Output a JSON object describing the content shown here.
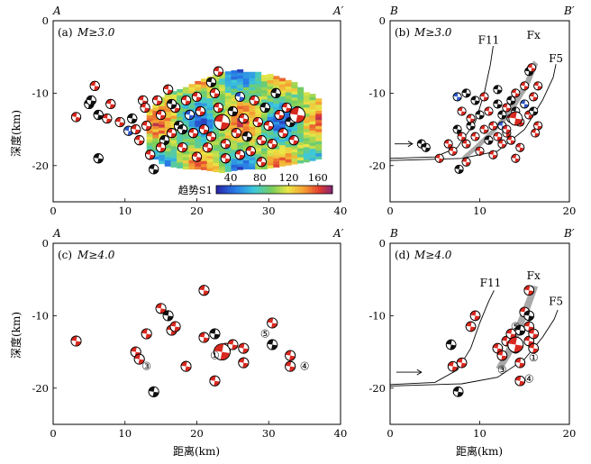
{
  "chart_data": [
    {
      "id": "a",
      "type": "scatter",
      "panel_label": "(a)",
      "magnitude_label": "M≥3.0",
      "corner_left": "A",
      "corner_right": "A′",
      "xlim": [
        0,
        40
      ],
      "ylim": [
        -25,
        0
      ],
      "xticks": [
        0,
        10,
        20,
        30,
        40
      ],
      "yticks": [
        0,
        -10,
        -20
      ],
      "ylabel": "深度(km)",
      "colorbar": {
        "label": "趋势S1",
        "ticks": [
          40,
          80,
          120,
          160
        ],
        "range": [
          20,
          180
        ]
      },
      "heat_region": {
        "x_from": 13,
        "x_to": 37,
        "ranges": [
          [
            13,
            -12.5,
            -18.5
          ],
          [
            15,
            -10.5,
            -20
          ],
          [
            18,
            -9.5,
            -20.5
          ],
          [
            20,
            -8.5,
            -20.5
          ],
          [
            23,
            -7.5,
            -21
          ],
          [
            26,
            -7,
            -20.5
          ],
          [
            29,
            -7.5,
            -20.5
          ],
          [
            32,
            -8,
            -20
          ],
          [
            35,
            -10,
            -19.5
          ],
          [
            37,
            -11,
            -19
          ]
        ]
      },
      "points": [
        [
          3.2,
          -13.3,
          "r"
        ],
        [
          5.0,
          -11.5,
          "b"
        ],
        [
          5.3,
          -11.0,
          "b"
        ],
        [
          5.8,
          -9.0,
          "r"
        ],
        [
          6.3,
          -13.0,
          "b"
        ],
        [
          6.3,
          -19.0,
          "b"
        ],
        [
          7.5,
          -13.5,
          "r"
        ],
        [
          8.0,
          -11.5,
          "r"
        ],
        [
          9.3,
          -14.0,
          "r"
        ],
        [
          10.5,
          -15.2,
          "u"
        ],
        [
          11.0,
          -13.5,
          "b"
        ],
        [
          11.5,
          -15.0,
          "r"
        ],
        [
          12.0,
          -16.5,
          "r"
        ],
        [
          12.5,
          -11.0,
          "r"
        ],
        [
          13.0,
          -14.5,
          "r"
        ],
        [
          13.5,
          -18.5,
          "r"
        ],
        [
          14.0,
          -20.5,
          "b"
        ],
        [
          14.5,
          -11.0,
          "r"
        ],
        [
          15.0,
          -13.0,
          "r"
        ],
        [
          15.5,
          -16.5,
          "b"
        ],
        [
          16.0,
          -9.5,
          "r"
        ],
        [
          16.5,
          -15.5,
          "r"
        ],
        [
          17.0,
          -12.0,
          "r"
        ],
        [
          17.5,
          -14.5,
          "b"
        ],
        [
          18.0,
          -17.5,
          "r"
        ],
        [
          18.5,
          -11.0,
          "r"
        ],
        [
          19.0,
          -13.0,
          "u"
        ],
        [
          19.5,
          -15.5,
          "r"
        ],
        [
          20.0,
          -10.5,
          "r"
        ],
        [
          20.5,
          -12.5,
          "r"
        ],
        [
          21.0,
          -15.0,
          "r"
        ],
        [
          21.5,
          -17.5,
          "r"
        ],
        [
          22.0,
          -8.5,
          "b"
        ],
        [
          22.5,
          -10.0,
          "r"
        ],
        [
          23.0,
          -12.0,
          "r"
        ],
        [
          23.5,
          -14.5,
          "r"
        ],
        [
          24.0,
          -17.0,
          "r"
        ],
        [
          24.0,
          -19.0,
          "r"
        ],
        [
          25.0,
          -12.5,
          "b"
        ],
        [
          25.5,
          -15.5,
          "r"
        ],
        [
          26.0,
          -10.5,
          "u"
        ],
        [
          26.5,
          -13.5,
          "r"
        ],
        [
          27.0,
          -16.0,
          "b"
        ],
        [
          27.5,
          -18.0,
          "r"
        ],
        [
          28.0,
          -11.0,
          "r"
        ],
        [
          28.5,
          -14.0,
          "r"
        ],
        [
          29.0,
          -16.5,
          "r"
        ],
        [
          29.5,
          -12.0,
          "b"
        ],
        [
          30.0,
          -14.5,
          "r"
        ],
        [
          30.5,
          -17.0,
          "r"
        ],
        [
          31.0,
          -10.0,
          "b"
        ],
        [
          31.5,
          -13.0,
          "r"
        ],
        [
          32.0,
          -15.5,
          "r"
        ],
        [
          32.5,
          -12.0,
          "r"
        ],
        [
          33.0,
          -14.0,
          "b"
        ],
        [
          33.5,
          -16.5,
          "r"
        ],
        [
          34.0,
          -12.5,
          "r"
        ],
        [
          22.0,
          -16.0,
          "r"
        ],
        [
          18.0,
          -15.0,
          "b"
        ],
        [
          15.0,
          -17.5,
          "r"
        ],
        [
          12.8,
          -12.0,
          "r"
        ],
        [
          26.0,
          -18.5,
          "r"
        ],
        [
          23.0,
          -7.0,
          "r"
        ],
        [
          16.5,
          -11.5,
          "b"
        ],
        [
          20.0,
          -18.8,
          "r"
        ],
        [
          29.0,
          -19.5,
          "r"
        ]
      ],
      "big_points": [
        [
          23.5,
          -14.0,
          "r"
        ],
        [
          34.0,
          -13.0,
          "r"
        ]
      ]
    },
    {
      "id": "b",
      "type": "scatter",
      "panel_label": "(b)",
      "magnitude_label": "M≥3.0",
      "corner_left": "B",
      "corner_right": "B′",
      "xlim": [
        0,
        20
      ],
      "ylim": [
        -25,
        0
      ],
      "xticks": [
        0,
        10,
        20
      ],
      "yticks": [
        0,
        -10,
        -20
      ],
      "fault_labels": [
        {
          "text": "F11",
          "x": 11.0,
          "y": -3.2
        },
        {
          "text": "Fx",
          "x": 16.0,
          "y": -2.5
        },
        {
          "text": "F5",
          "x": 18.5,
          "y": -5.7
        }
      ],
      "faults": [
        [
          [
            0,
            -19
          ],
          [
            5,
            -18.8
          ],
          [
            7.5,
            -17.5
          ],
          [
            9.5,
            -14
          ],
          [
            10.5,
            -10
          ],
          [
            11.2,
            -6
          ],
          [
            11.5,
            -3.5
          ]
        ],
        [
          [
            0,
            -19.3
          ],
          [
            8,
            -19
          ],
          [
            12,
            -18
          ],
          [
            15,
            -15
          ],
          [
            17,
            -11
          ],
          [
            18.2,
            -7.8
          ],
          [
            18.5,
            -6
          ]
        ]
      ],
      "band": [
        [
          8.5,
          -19
        ],
        [
          10,
          -17.5
        ],
        [
          12,
          -15
        ],
        [
          13.5,
          -13
        ],
        [
          14.5,
          -11
        ],
        [
          15.5,
          -9
        ],
        [
          16.5,
          -6
        ],
        [
          16.0,
          -5.5
        ],
        [
          15.0,
          -8.5
        ],
        [
          14.0,
          -10.5
        ],
        [
          13.0,
          -12.5
        ],
        [
          11.5,
          -14.8
        ],
        [
          9.5,
          -17.2
        ],
        [
          8.0,
          -18.8
        ]
      ],
      "arrow": {
        "from": [
          0.5,
          -17.0
        ],
        "to": [
          2.5,
          -17.0
        ]
      },
      "points": [
        [
          3.5,
          -17.0,
          "b"
        ],
        [
          4.0,
          -17.5,
          "b"
        ],
        [
          5.5,
          -19.0,
          "r"
        ],
        [
          6.5,
          -17.0,
          "r"
        ],
        [
          7.0,
          -18.0,
          "r"
        ],
        [
          7.5,
          -15.0,
          "b"
        ],
        [
          8.0,
          -16.0,
          "r"
        ],
        [
          8.5,
          -19.5,
          "r"
        ],
        [
          7.7,
          -20.5,
          "b"
        ],
        [
          7.5,
          -10.5,
          "u"
        ],
        [
          8.5,
          -10.0,
          "b"
        ],
        [
          8.0,
          -12.5,
          "r"
        ],
        [
          8.5,
          -17.0,
          "r"
        ],
        [
          9.0,
          -14.5,
          "b"
        ],
        [
          9.5,
          -11.0,
          "b"
        ],
        [
          9.5,
          -16.0,
          "r"
        ],
        [
          10.0,
          -13.0,
          "b"
        ],
        [
          10.0,
          -18.0,
          "r"
        ],
        [
          10.5,
          -10.5,
          "r"
        ],
        [
          10.5,
          -15.0,
          "r"
        ],
        [
          11.0,
          -12.5,
          "r"
        ],
        [
          11.0,
          -16.5,
          "b"
        ],
        [
          11.5,
          -14.5,
          "r"
        ],
        [
          12.0,
          -11.5,
          "b"
        ],
        [
          12.0,
          -16.0,
          "r"
        ],
        [
          12.5,
          -13.0,
          "b"
        ],
        [
          12.5,
          -14.5,
          "u"
        ],
        [
          13.0,
          -12.0,
          "r"
        ],
        [
          13.0,
          -15.5,
          "r"
        ],
        [
          13.5,
          -11.0,
          "b"
        ],
        [
          13.5,
          -13.5,
          "r"
        ],
        [
          14.0,
          -12.5,
          "b"
        ],
        [
          14.0,
          -10.0,
          "r"
        ],
        [
          14.5,
          -14.0,
          "r"
        ],
        [
          14.5,
          -17.5,
          "r"
        ],
        [
          15.0,
          -9.0,
          "r"
        ],
        [
          15.0,
          -11.5,
          "u"
        ],
        [
          15.5,
          -13.0,
          "r"
        ],
        [
          15.5,
          -7.0,
          "b"
        ],
        [
          16.0,
          -10.5,
          "r"
        ],
        [
          16.0,
          -12.5,
          "b"
        ],
        [
          16.5,
          -14.5,
          "r"
        ],
        [
          16.5,
          -9.0,
          "r"
        ],
        [
          14.0,
          -19.0,
          "r"
        ],
        [
          13.5,
          -16.5,
          "r"
        ],
        [
          12.0,
          -9.5,
          "b"
        ],
        [
          11.5,
          -18.5,
          "r"
        ],
        [
          9.0,
          -13.5,
          "r"
        ],
        [
          15.8,
          -6.5,
          "r"
        ],
        [
          13.0,
          -15.0,
          "r"
        ],
        [
          12.5,
          -17.0,
          "r"
        ],
        [
          16.2,
          -15.5,
          "r"
        ]
      ],
      "big_points": [
        [
          14.0,
          -13.5,
          "r"
        ]
      ]
    },
    {
      "id": "c",
      "type": "scatter",
      "panel_label": "(c)",
      "magnitude_label": "M≥4.0",
      "corner_left": "A",
      "corner_right": "A′",
      "xlim": [
        0,
        40
      ],
      "ylim": [
        -25,
        0
      ],
      "xticks": [
        0,
        10,
        20,
        30,
        40
      ],
      "yticks": [
        0,
        -10,
        -20
      ],
      "ylabel": "深度(km)",
      "xlabel": "距离(km)",
      "numbered_labels": [
        {
          "text": "①",
          "x": 22.5,
          "y": -15.5
        },
        {
          "text": "③",
          "x": 13.0,
          "y": -17.0
        },
        {
          "text": "④",
          "x": 35.0,
          "y": -17.0
        },
        {
          "text": "⑤",
          "x": 29.5,
          "y": -12.5
        }
      ],
      "points": [
        [
          3.2,
          -13.5,
          "r"
        ],
        [
          11.5,
          -15.0,
          "r"
        ],
        [
          12.0,
          -16.0,
          "r"
        ],
        [
          13.0,
          -12.5,
          "r"
        ],
        [
          14.0,
          -20.5,
          "b"
        ],
        [
          15.0,
          -9.0,
          "r"
        ],
        [
          16.0,
          -10.0,
          "b"
        ],
        [
          16.5,
          -12.0,
          "r"
        ],
        [
          17.0,
          -11.5,
          "r"
        ],
        [
          18.5,
          -17.0,
          "r"
        ],
        [
          21.0,
          -6.5,
          "r"
        ],
        [
          21.0,
          -13.0,
          "r"
        ],
        [
          22.5,
          -12.5,
          "b"
        ],
        [
          22.5,
          -19.0,
          "r"
        ],
        [
          24.0,
          -14.5,
          "r"
        ],
        [
          25.0,
          -14.0,
          "r"
        ],
        [
          26.5,
          -14.5,
          "r"
        ],
        [
          26.5,
          -16.5,
          "r"
        ],
        [
          30.5,
          -11.0,
          "r"
        ],
        [
          30.5,
          -14.0,
          "b"
        ],
        [
          33.0,
          -15.5,
          "r"
        ],
        [
          33.0,
          -17.0,
          "r"
        ]
      ],
      "big_points": [
        [
          23.5,
          -15.0,
          "r"
        ]
      ]
    },
    {
      "id": "d",
      "type": "scatter",
      "panel_label": "(d)",
      "magnitude_label": "M≥4.0",
      "corner_left": "B",
      "corner_right": "B′",
      "xlim": [
        0,
        20
      ],
      "ylim": [
        -25,
        0
      ],
      "xticks": [
        0,
        10,
        20
      ],
      "yticks": [
        0,
        -10,
        -20
      ],
      "xlabel": "距离(km)",
      "fault_labels": [
        {
          "text": "F11",
          "x": 11.2,
          "y": -6.0
        },
        {
          "text": "Fx",
          "x": 16.0,
          "y": -5.0
        },
        {
          "text": "F5",
          "x": 18.5,
          "y": -8.5
        }
      ],
      "faults": [
        [
          [
            0,
            -19.5
          ],
          [
            5,
            -19.2
          ],
          [
            7.5,
            -17.5
          ],
          [
            9.0,
            -14.5
          ],
          [
            10.0,
            -11
          ],
          [
            11.0,
            -8
          ],
          [
            11.6,
            -6.5
          ]
        ],
        [
          [
            0,
            -19.7
          ],
          [
            8,
            -19.4
          ],
          [
            12,
            -18.5
          ],
          [
            15,
            -16
          ],
          [
            17,
            -13
          ],
          [
            18.3,
            -10.5
          ],
          [
            18.7,
            -9.2
          ]
        ]
      ],
      "band": [
        [
          12.5,
          -17.5
        ],
        [
          13.5,
          -15.5
        ],
        [
          14.5,
          -12.5
        ],
        [
          15.5,
          -9.5
        ],
        [
          16.5,
          -6.0
        ],
        [
          15.8,
          -5.8
        ],
        [
          14.8,
          -9.0
        ],
        [
          13.8,
          -12.0
        ],
        [
          12.8,
          -15.0
        ],
        [
          11.8,
          -17.2
        ]
      ],
      "arrow": {
        "from": [
          0.7,
          -17.8
        ],
        "to": [
          3.5,
          -17.8
        ]
      },
      "numbered_labels": [
        {
          "text": "①",
          "x": 16.0,
          "y": -15.8
        },
        {
          "text": "③",
          "x": 12.5,
          "y": -17.5
        },
        {
          "text": "④",
          "x": 15.5,
          "y": -18.7
        },
        {
          "text": "⑤",
          "x": 14.0,
          "y": -11.5
        }
      ],
      "points": [
        [
          6.8,
          -14.0,
          "b"
        ],
        [
          7.0,
          -17.0,
          "r"
        ],
        [
          7.6,
          -20.5,
          "b"
        ],
        [
          8.0,
          -16.5,
          "r"
        ],
        [
          9.0,
          -11.5,
          "r"
        ],
        [
          9.5,
          -10.0,
          "r"
        ],
        [
          12.0,
          -14.5,
          "r"
        ],
        [
          12.5,
          -15.5,
          "r"
        ],
        [
          13.0,
          -13.5,
          "r"
        ],
        [
          13.5,
          -12.5,
          "r"
        ],
        [
          14.0,
          -14.5,
          "r"
        ],
        [
          14.5,
          -16.5,
          "r"
        ],
        [
          14.5,
          -12.0,
          "b"
        ],
        [
          15.0,
          -9.5,
          "r"
        ],
        [
          15.5,
          -11.5,
          "r"
        ],
        [
          15.5,
          -13.5,
          "r"
        ],
        [
          16.0,
          -14.5,
          "r"
        ],
        [
          15.5,
          -6.5,
          "r"
        ],
        [
          14.5,
          -19.0,
          "r"
        ],
        [
          16.0,
          -12.5,
          "r"
        ],
        [
          15.5,
          -10.0,
          "b"
        ]
      ],
      "big_points": [
        [
          14.0,
          -14.0,
          "r"
        ]
      ]
    }
  ]
}
